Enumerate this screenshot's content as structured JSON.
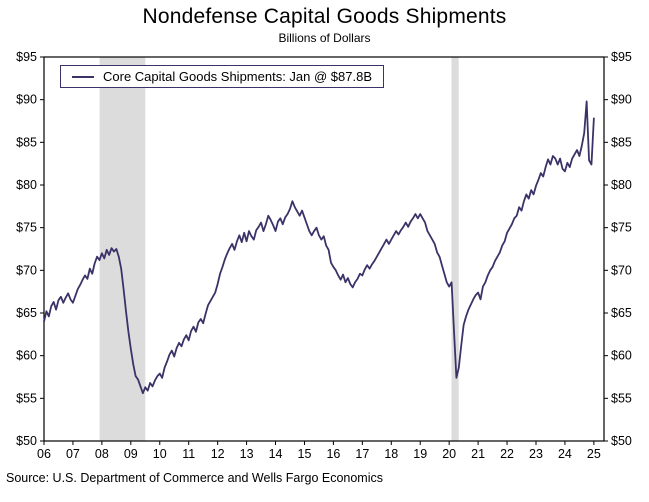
{
  "title": "Nondefense Capital Goods Shipments",
  "subtitle": "Billions of Dollars",
  "legend": {
    "label": "Core Capital Goods Shipments: Jan @ $87.8B"
  },
  "source": "Source: U.S. Department of Commerce and Wells Fargo Economics",
  "colors": {
    "line": "#3b3268",
    "recession": "#dcdcdc",
    "axis": "#000000"
  },
  "chart_data": {
    "type": "line",
    "title": "Nondefense Capital Goods Shipments",
    "ylabel": "Billions of Dollars",
    "ylim": [
      50,
      95
    ],
    "ytick_step": 5,
    "ytick_prefix": "$",
    "xlim": [
      2006,
      2025.35
    ],
    "x_tick_labels": [
      "06",
      "07",
      "08",
      "09",
      "10",
      "11",
      "12",
      "13",
      "14",
      "15",
      "16",
      "17",
      "18",
      "19",
      "20",
      "21",
      "22",
      "23",
      "24",
      "25"
    ],
    "recession_bands": [
      [
        2007.92,
        2009.5
      ],
      [
        2020.08,
        2020.33
      ]
    ],
    "grid": false,
    "legend_position": "top-left",
    "series": [
      {
        "name": "Core Capital Goods Shipments",
        "start": "2006-01",
        "frequency": "monthly",
        "unit": "billions of dollars",
        "latest_label": "Jan @ $87.8B",
        "values": [
          64.0,
          65.2,
          64.6,
          65.8,
          66.3,
          65.4,
          66.5,
          66.9,
          66.2,
          66.8,
          67.3,
          66.6,
          66.2,
          67.0,
          67.8,
          68.3,
          68.9,
          69.4,
          69.0,
          70.2,
          69.6,
          70.8,
          71.6,
          71.2,
          72.0,
          71.4,
          72.4,
          71.8,
          72.6,
          72.2,
          72.5,
          71.6,
          70.2,
          67.8,
          65.2,
          62.8,
          60.8,
          59.0,
          57.6,
          57.2,
          56.4,
          55.6,
          56.3,
          55.9,
          56.8,
          56.4,
          57.1,
          57.6,
          57.9,
          57.4,
          58.6,
          59.3,
          60.1,
          60.6,
          59.9,
          60.9,
          61.5,
          61.1,
          61.9,
          62.4,
          61.8,
          62.9,
          63.4,
          62.8,
          63.9,
          64.3,
          63.8,
          64.9,
          65.9,
          66.4,
          66.9,
          67.4,
          68.4,
          69.6,
          70.4,
          71.3,
          72.0,
          72.6,
          73.1,
          72.4,
          73.4,
          74.1,
          73.3,
          74.4,
          73.4,
          74.6,
          74.0,
          73.6,
          74.7,
          75.1,
          75.6,
          74.6,
          75.4,
          76.4,
          75.9,
          75.3,
          74.6,
          75.7,
          76.1,
          75.4,
          76.2,
          76.6,
          77.2,
          78.1,
          77.4,
          76.9,
          76.4,
          77.0,
          76.2,
          75.4,
          74.6,
          74.1,
          74.6,
          75.0,
          74.1,
          73.6,
          74.0,
          72.9,
          72.4,
          70.9,
          70.4,
          70.0,
          69.4,
          68.9,
          69.5,
          68.6,
          69.1,
          68.4,
          68.0,
          68.6,
          69.0,
          69.6,
          69.4,
          70.1,
          70.6,
          70.2,
          70.7,
          71.1,
          71.6,
          72.1,
          72.6,
          73.1,
          73.6,
          73.1,
          73.6,
          74.1,
          74.6,
          74.2,
          74.7,
          75.1,
          75.6,
          75.1,
          75.7,
          76.1,
          76.6,
          76.1,
          76.6,
          76.1,
          75.6,
          74.6,
          74.1,
          73.6,
          73.1,
          72.1,
          71.6,
          70.6,
          69.6,
          68.6,
          68.1,
          68.6,
          62.9,
          57.4,
          58.6,
          61.2,
          63.6,
          64.6,
          65.4,
          66.0,
          66.6,
          67.1,
          67.4,
          66.6,
          68.1,
          68.6,
          69.4,
          70.0,
          70.4,
          71.1,
          71.6,
          72.1,
          72.9,
          73.4,
          74.4,
          74.9,
          75.4,
          76.1,
          76.4,
          77.4,
          77.0,
          78.1,
          78.9,
          78.4,
          79.4,
          78.9,
          79.9,
          80.6,
          81.4,
          81.0,
          82.1,
          83.0,
          82.4,
          83.4,
          83.1,
          82.4,
          83.1,
          81.9,
          81.6,
          82.6,
          82.1,
          83.1,
          83.6,
          84.1,
          83.4,
          84.6,
          86.1,
          89.8,
          82.9,
          82.4,
          87.8
        ]
      }
    ]
  }
}
